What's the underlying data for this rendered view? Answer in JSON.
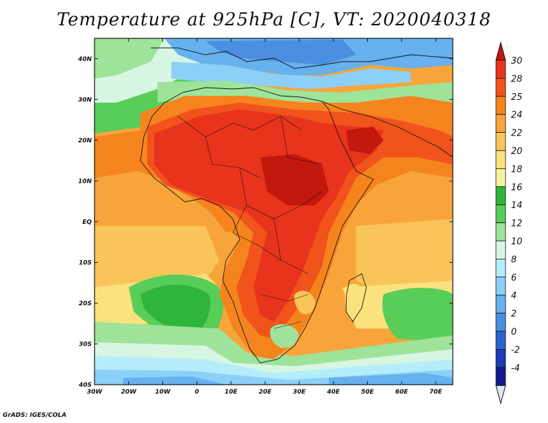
{
  "title": "Temperature at 925hPa [C], VT: 2020040318",
  "credit": "GrADS: IGES/COLA",
  "map": {
    "lon_range": [
      -30,
      75
    ],
    "lat_range": [
      -40,
      45
    ],
    "lon_ticks": [
      {
        "lon": -30,
        "label": "30W"
      },
      {
        "lon": -20,
        "label": "20W"
      },
      {
        "lon": -10,
        "label": "10W"
      },
      {
        "lon": 0,
        "label": "0"
      },
      {
        "lon": 10,
        "label": "10E"
      },
      {
        "lon": 20,
        "label": "20E"
      },
      {
        "lon": 30,
        "label": "30E"
      },
      {
        "lon": 40,
        "label": "40E"
      },
      {
        "lon": 50,
        "label": "50E"
      },
      {
        "lon": 60,
        "label": "60E"
      },
      {
        "lon": 70,
        "label": "70E"
      }
    ],
    "lat_ticks": [
      {
        "lat": 40,
        "label": "40N"
      },
      {
        "lat": 30,
        "label": "30N"
      },
      {
        "lat": 20,
        "label": "20N"
      },
      {
        "lat": 10,
        "label": "10N"
      },
      {
        "lat": 0,
        "label": "EQ"
      },
      {
        "lat": -10,
        "label": "10S"
      },
      {
        "lat": -20,
        "label": "20S"
      },
      {
        "lat": -30,
        "label": "30S"
      },
      {
        "lat": -40,
        "label": "40S"
      }
    ]
  },
  "colorbar": {
    "levels": [
      {
        "label": "30",
        "color": "#e8341c"
      },
      {
        "label": "28",
        "color": "#f0531c"
      },
      {
        "label": "25",
        "color": "#f5841f"
      },
      {
        "label": "24",
        "color": "#f7a53a"
      },
      {
        "label": "22",
        "color": "#f9c45a"
      },
      {
        "label": "20",
        "color": "#fbe27e"
      },
      {
        "label": "18",
        "color": "#f4f4a0"
      },
      {
        "label": "16",
        "color": "#2fb63a"
      },
      {
        "label": "14",
        "color": "#58cd58"
      },
      {
        "label": "12",
        "color": "#9ee39a"
      },
      {
        "label": "10",
        "color": "#d6f6e2"
      },
      {
        "label": "8",
        "color": "#b4ecfa"
      },
      {
        "label": "6",
        "color": "#8cd0f7"
      },
      {
        "label": "4",
        "color": "#66b1ee"
      },
      {
        "label": "2",
        "color": "#4a8fe0"
      },
      {
        "label": "0",
        "color": "#2f62d0"
      },
      {
        "label": "-2",
        "color": "#1c3cb5"
      },
      {
        "label": "-4",
        "color": "#121a8c"
      }
    ],
    "top_color": "#c2180e",
    "bottom_color": "#e6e6fa"
  },
  "palette": {
    "hot": "#c2180e",
    "red": "#e8341c",
    "orange_red": "#f0531c",
    "orange": "#f5841f",
    "light_orange": "#f7a53a",
    "gold": "#f9c45a",
    "yellow": "#fbe27e",
    "green": "#2fb63a",
    "mid_green": "#58cd58",
    "light_green": "#9ee39a",
    "pale": "#d6f6e2",
    "sky": "#b4ecfa",
    "light_blue": "#8cd0f7",
    "blue": "#66b1ee",
    "mid_blue": "#4a8fe0"
  }
}
